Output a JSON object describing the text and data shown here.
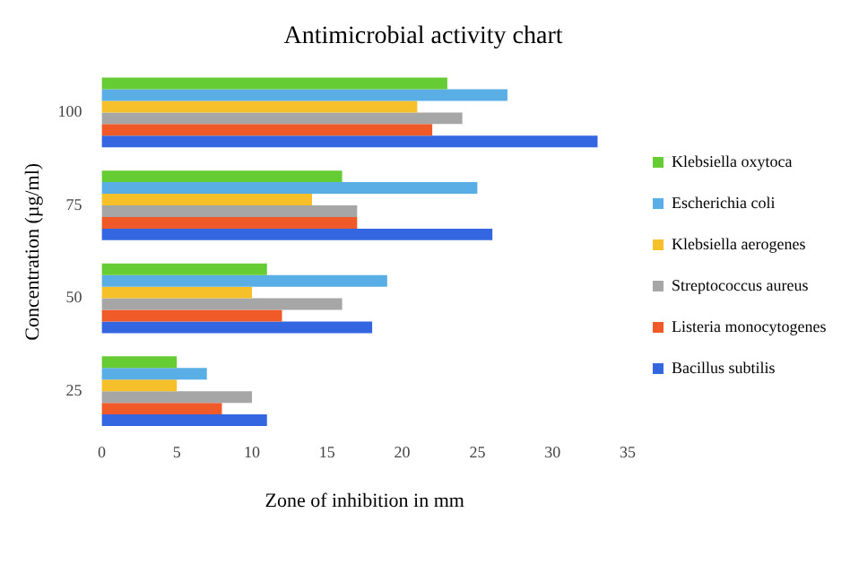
{
  "chart_data": {
    "type": "bar",
    "orientation": "horizontal",
    "title": "Antimicrobial activity chart",
    "xlabel": "Zone of inhibition in mm",
    "ylabel": "Concentration (µg/ml)",
    "categories": [
      "100",
      "75",
      "50",
      "25"
    ],
    "series": [
      {
        "name": "Klebsiella oxytoca",
        "color": "#66cc33",
        "values": [
          23,
          16,
          11,
          5
        ]
      },
      {
        "name": "Escherichia coli",
        "color": "#5aaee6",
        "values": [
          27,
          25,
          19,
          7
        ]
      },
      {
        "name": "Klebsiella aerogenes",
        "color": "#f5c02a",
        "values": [
          21,
          14,
          10,
          5
        ]
      },
      {
        "name": "Streptococcus aureus",
        "color": "#a6a6a6",
        "values": [
          24,
          17,
          16,
          10
        ]
      },
      {
        "name": "Listeria monocytogenes",
        "color": "#f05a28",
        "values": [
          22,
          17,
          12,
          8
        ]
      },
      {
        "name": "Bacillus subtilis",
        "color": "#3366e0",
        "values": [
          33,
          26,
          18,
          11
        ]
      }
    ],
    "xlim": [
      0,
      35
    ],
    "xticks": [
      0,
      5,
      10,
      15,
      20,
      25,
      30,
      35
    ],
    "grid": false,
    "legend": "right"
  }
}
